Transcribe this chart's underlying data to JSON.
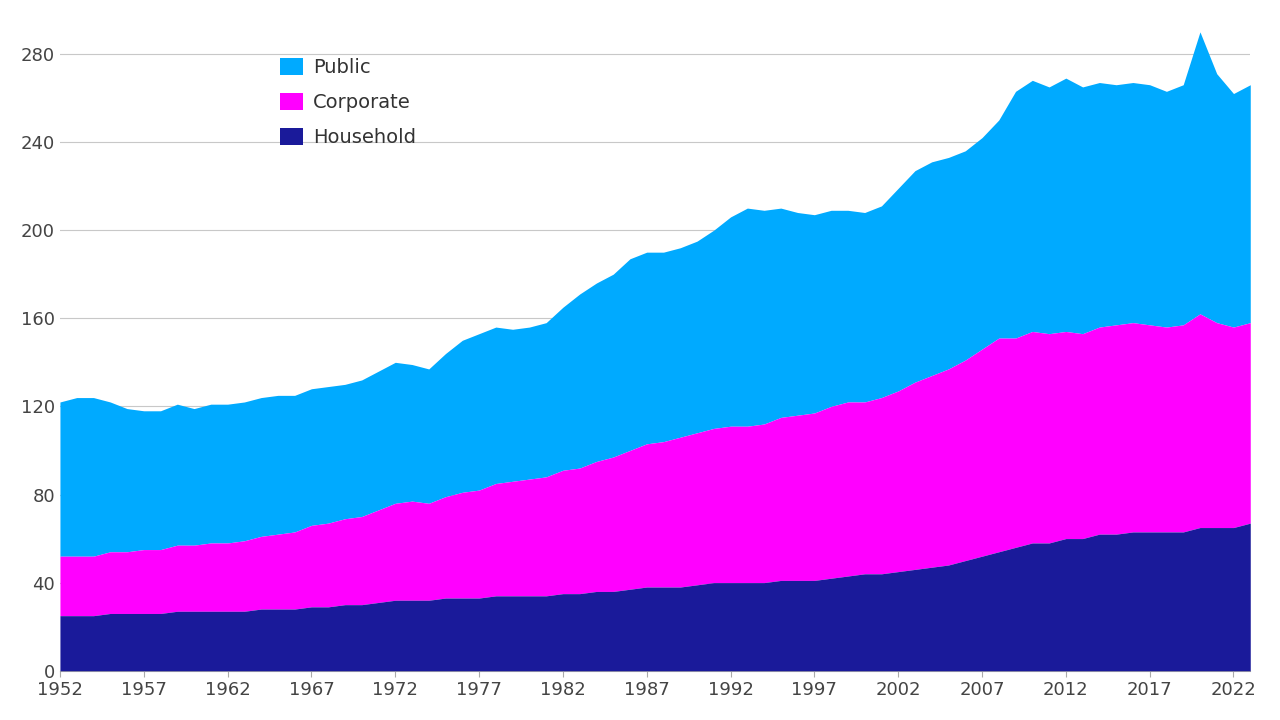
{
  "years": [
    1952,
    1953,
    1954,
    1955,
    1956,
    1957,
    1958,
    1959,
    1960,
    1961,
    1962,
    1963,
    1964,
    1965,
    1966,
    1967,
    1968,
    1969,
    1970,
    1971,
    1972,
    1973,
    1974,
    1975,
    1976,
    1977,
    1978,
    1979,
    1980,
    1981,
    1982,
    1983,
    1984,
    1985,
    1986,
    1987,
    1988,
    1989,
    1990,
    1991,
    1992,
    1993,
    1994,
    1995,
    1996,
    1997,
    1998,
    1999,
    2000,
    2001,
    2002,
    2003,
    2004,
    2005,
    2006,
    2007,
    2008,
    2009,
    2010,
    2011,
    2012,
    2013,
    2014,
    2015,
    2016,
    2017,
    2018,
    2019,
    2020,
    2021,
    2022,
    2023
  ],
  "household": [
    25,
    25,
    25,
    26,
    26,
    26,
    26,
    27,
    27,
    27,
    27,
    27,
    28,
    28,
    28,
    29,
    29,
    30,
    30,
    31,
    32,
    32,
    32,
    33,
    33,
    33,
    34,
    34,
    34,
    34,
    35,
    35,
    36,
    36,
    37,
    38,
    38,
    38,
    39,
    40,
    40,
    40,
    40,
    41,
    41,
    41,
    42,
    43,
    44,
    44,
    45,
    46,
    47,
    48,
    50,
    52,
    54,
    56,
    58,
    58,
    60,
    60,
    62,
    62,
    63,
    63,
    63,
    63,
    65,
    65,
    65,
    67
  ],
  "corporate": [
    27,
    27,
    27,
    28,
    28,
    29,
    29,
    30,
    30,
    31,
    31,
    32,
    33,
    34,
    35,
    37,
    38,
    39,
    40,
    42,
    44,
    45,
    44,
    46,
    48,
    49,
    51,
    52,
    53,
    54,
    56,
    57,
    59,
    61,
    63,
    65,
    66,
    68,
    69,
    70,
    71,
    71,
    72,
    74,
    75,
    76,
    78,
    79,
    78,
    80,
    82,
    85,
    87,
    89,
    91,
    94,
    97,
    95,
    96,
    95,
    94,
    93,
    94,
    95,
    95,
    94,
    93,
    94,
    97,
    93,
    91,
    91
  ],
  "public": [
    70,
    72,
    72,
    68,
    65,
    63,
    63,
    64,
    62,
    63,
    63,
    63,
    63,
    63,
    62,
    62,
    62,
    61,
    62,
    63,
    64,
    62,
    61,
    65,
    69,
    71,
    71,
    69,
    69,
    70,
    74,
    79,
    81,
    83,
    87,
    87,
    86,
    86,
    87,
    90,
    95,
    99,
    97,
    95,
    92,
    90,
    89,
    87,
    86,
    87,
    92,
    96,
    97,
    96,
    95,
    96,
    99,
    112,
    114,
    112,
    115,
    112,
    111,
    109,
    109,
    109,
    107,
    109,
    128,
    113,
    106,
    108
  ],
  "colors": {
    "household": "#1a1a9a",
    "corporate": "#ff00ff",
    "public": "#00aaff"
  },
  "yticks": [
    0,
    40,
    80,
    120,
    160,
    200,
    240,
    280
  ],
  "xticks": [
    1952,
    1957,
    1962,
    1967,
    1972,
    1977,
    1982,
    1987,
    1992,
    1997,
    2002,
    2007,
    2012,
    2017,
    2022
  ],
  "ylim": [
    0,
    295
  ],
  "xlim": [
    1952,
    2023
  ],
  "background_color": "#ffffff",
  "grid_color": "#c8c8c8",
  "legend_labels": [
    "Public",
    "Corporate",
    "Household"
  ],
  "legend_colors": [
    "#00aaff",
    "#ff00ff",
    "#1a1a9a"
  ]
}
